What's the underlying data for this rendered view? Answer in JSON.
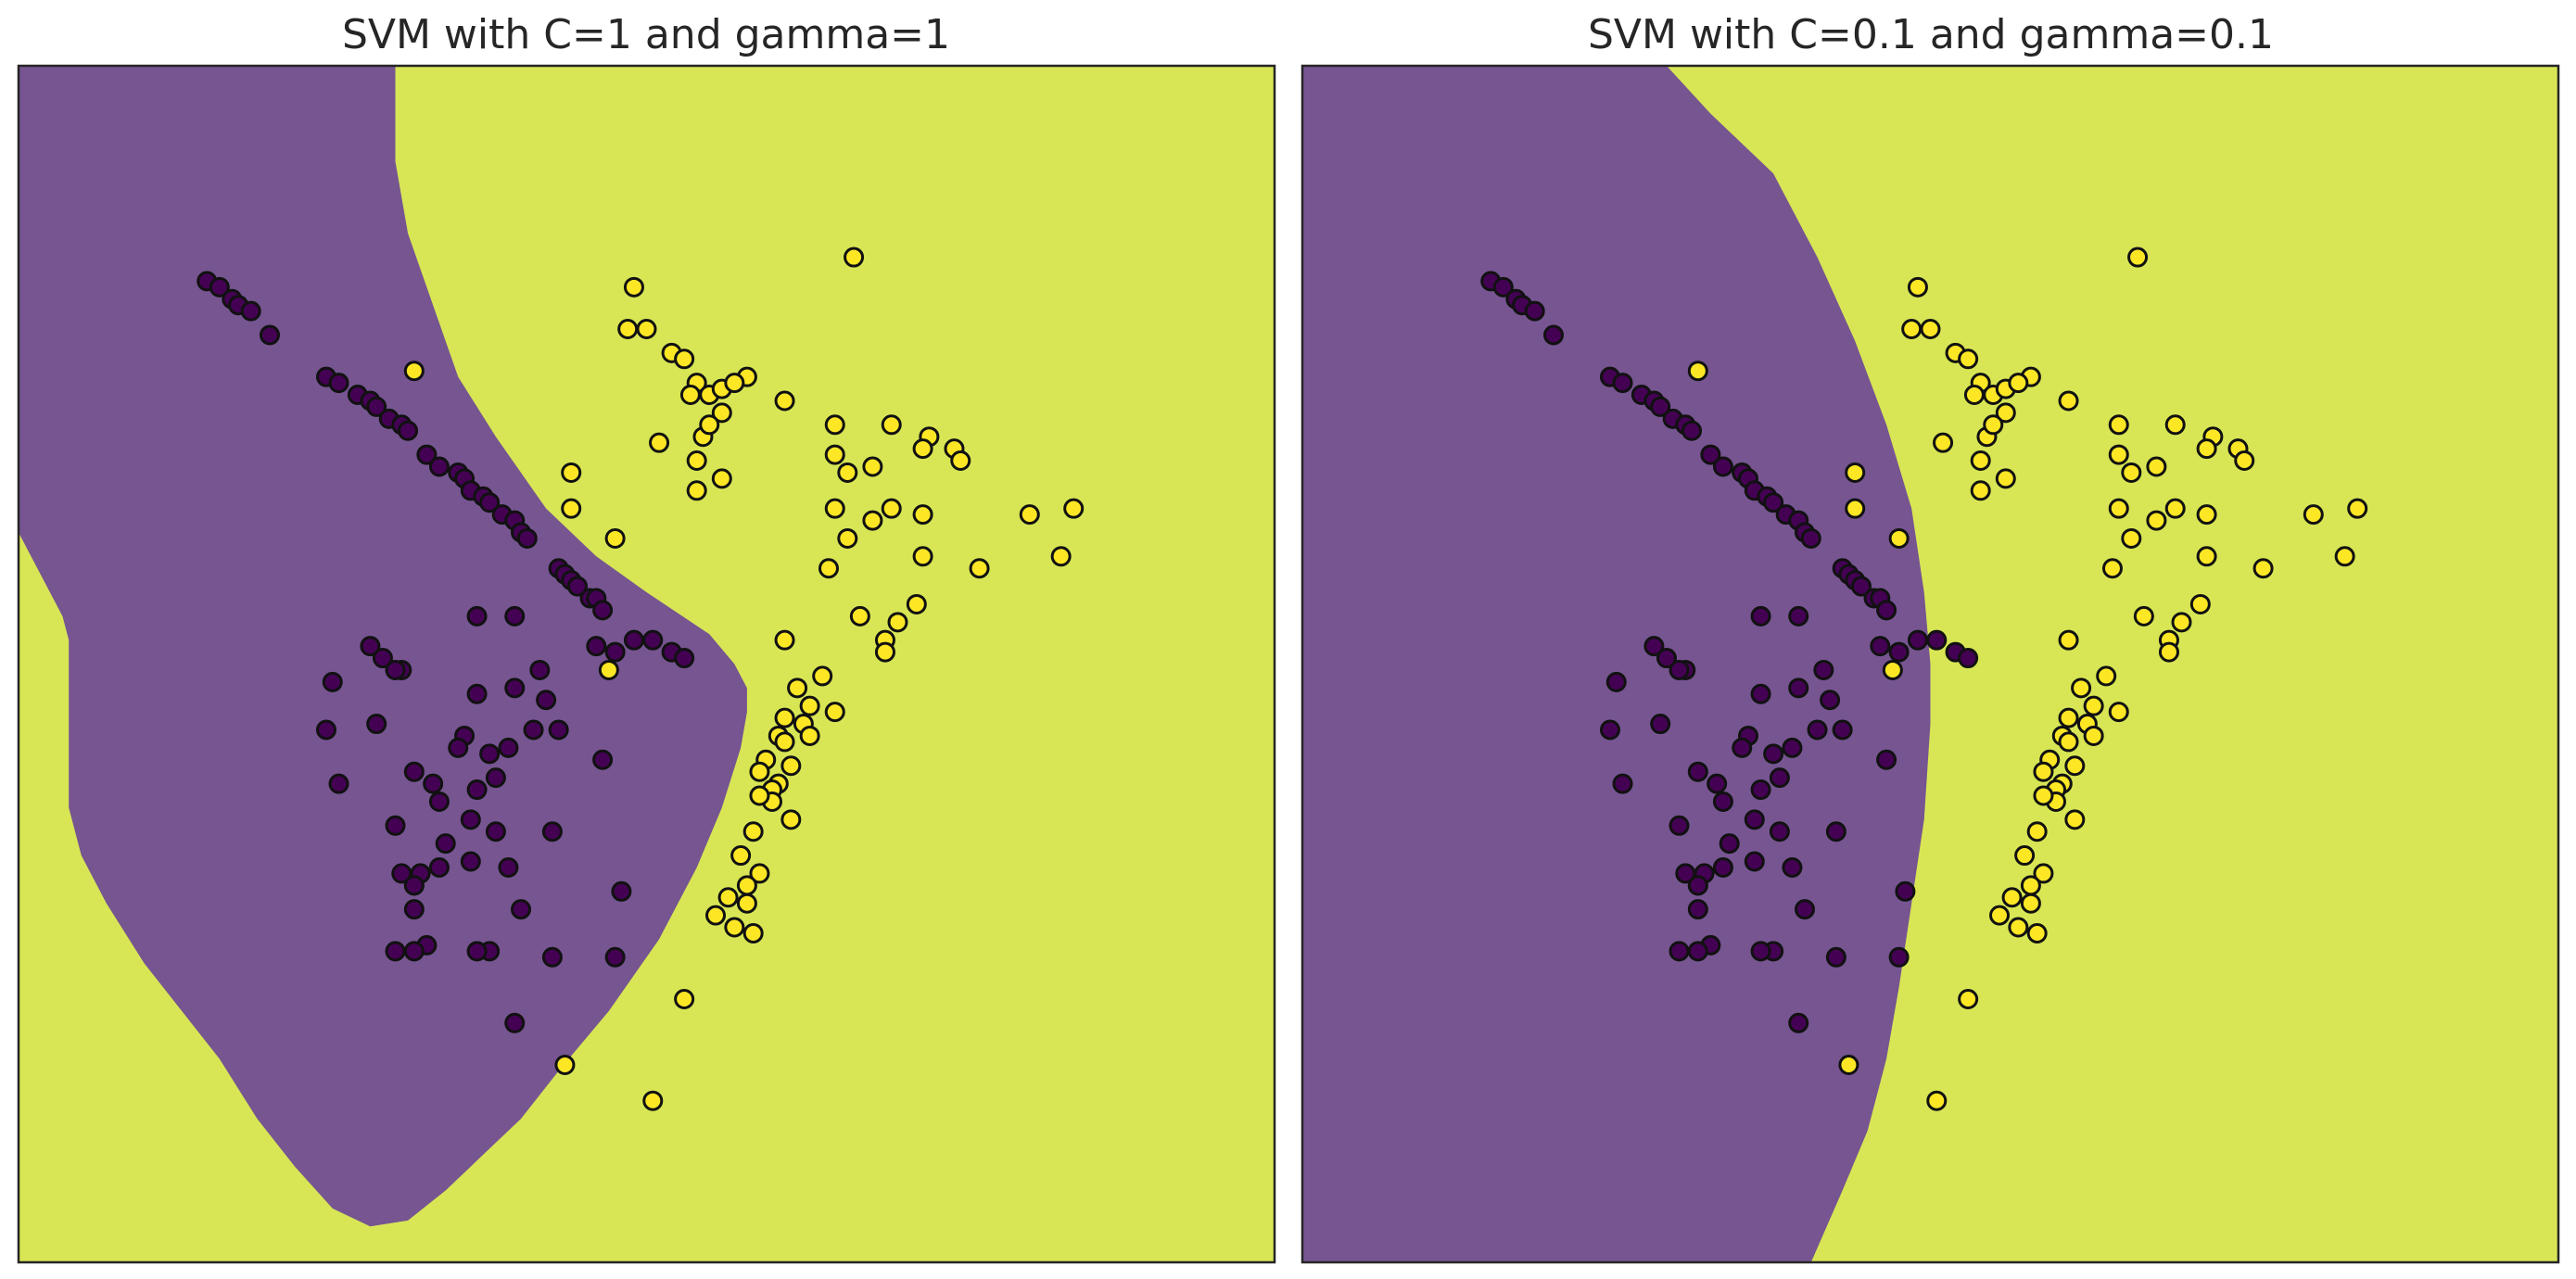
{
  "colors": {
    "class_0_region": "#765591",
    "class_1_region": "#d8e655",
    "class_0_point": "#440154",
    "class_1_point": "#fde725",
    "point_edge": "#111111"
  },
  "chart_data": [
    {
      "type": "scatter",
      "title": "SVM with C=1 and gamma=1",
      "xlabel": "",
      "ylabel": "",
      "xlim": [
        0,
        100
      ],
      "ylim": [
        0,
        100
      ],
      "grid": false,
      "ticks": false,
      "decision_region": {
        "class_0_boundary": [
          [
            0,
            61
          ],
          [
            1.5,
            58
          ],
          [
            3.5,
            54
          ],
          [
            4,
            52
          ],
          [
            4,
            38
          ],
          [
            5,
            34
          ],
          [
            7,
            30
          ],
          [
            10,
            25
          ],
          [
            13,
            21
          ],
          [
            16,
            17
          ],
          [
            19,
            12
          ],
          [
            22,
            8
          ],
          [
            25,
            4.5
          ],
          [
            28,
            3
          ],
          [
            31,
            3.5
          ],
          [
            34,
            6
          ],
          [
            37,
            9
          ],
          [
            40,
            12
          ],
          [
            43,
            16
          ],
          [
            47,
            21
          ],
          [
            51,
            27
          ],
          [
            54,
            33
          ],
          [
            56,
            38
          ],
          [
            57.5,
            43
          ],
          [
            58,
            46
          ],
          [
            58,
            48
          ],
          [
            57,
            50
          ],
          [
            55,
            52.5
          ],
          [
            50,
            56
          ],
          [
            46,
            59
          ],
          [
            42,
            63
          ],
          [
            38,
            69
          ],
          [
            35,
            74
          ],
          [
            33,
            80
          ],
          [
            31,
            86
          ],
          [
            30,
            92
          ],
          [
            30,
            100
          ],
          [
            0,
            100
          ]
        ]
      },
      "series": [
        {
          "class": 0,
          "x": [
            15,
            16,
            17,
            17.5,
            18.5,
            20,
            24.5,
            25.5,
            27,
            28,
            28.5,
            29.5,
            30.5,
            31,
            32.5,
            33.5,
            35,
            35.5,
            36,
            37,
            37.5,
            38.5,
            39.5,
            40,
            40.5,
            43,
            43.5,
            44,
            44.5,
            45.5,
            46,
            46.5,
            46,
            47.5,
            49,
            50.5,
            52,
            53,
            36.5,
            39.5,
            28,
            29,
            30.5,
            25,
            30,
            24.5,
            41.5,
            25.5,
            39.5,
            36.5,
            42,
            43,
            28.5,
            35.5,
            35,
            37.5,
            39,
            41,
            46.5,
            36.5,
            38,
            31.5,
            33.5,
            33,
            30,
            42.5,
            34,
            36,
            38,
            36,
            33.5,
            30.5,
            31.5,
            39,
            31.5,
            40,
            37.5,
            32.5,
            32,
            31.5,
            48,
            30,
            31.5,
            36.5,
            42.5,
            47.5,
            39.5
          ],
          "y": [
            82,
            81.5,
            80.5,
            80,
            79.5,
            77.5,
            74,
            73.5,
            72.5,
            72,
            71.5,
            70.5,
            70,
            69.5,
            67.5,
            66.5,
            66,
            65.5,
            64.5,
            64,
            63.5,
            62.5,
            62,
            61,
            60.5,
            58,
            57.5,
            57,
            56.5,
            55.5,
            55.5,
            54.5,
            51.5,
            51,
            52,
            52,
            51,
            50.5,
            54,
            54,
            51.5,
            50.5,
            49.5,
            48.5,
            49.5,
            44.5,
            49.5,
            40,
            48,
            47.5,
            47,
            44.5,
            45,
            44,
            43,
            42.5,
            43,
            44.5,
            42,
            39.5,
            40.5,
            41,
            38.5,
            40,
            36.5,
            36,
            35,
            37,
            36,
            33.5,
            33,
            32.5,
            31.5,
            33,
            29.5,
            29.5,
            26,
            26.5,
            32.5,
            31.5,
            31,
            26,
            26,
            26,
            25.5,
            25.5,
            20
          ]
        },
        {
          "class": 1,
          "x": [
            49,
            66.5,
            48.5,
            50,
            52,
            53,
            58,
            54,
            53.5,
            55,
            56,
            57,
            56,
            61,
            65,
            69.5,
            72.5,
            74.5,
            51,
            54.5,
            55,
            54,
            65,
            66,
            68,
            72,
            75,
            84,
            80.5,
            83,
            65,
            68,
            72,
            54,
            56,
            44,
            31.5,
            44,
            47.5,
            69.5,
            72,
            64.5,
            66,
            67,
            76.5,
            71.5,
            70,
            69,
            69,
            64,
            62,
            63,
            65,
            62.5,
            63,
            61,
            60.5,
            61,
            59.5,
            61.5,
            60.5,
            59,
            60,
            60,
            59,
            58.5,
            61.5,
            57.5,
            59,
            58,
            56.5,
            55.5,
            58,
            57,
            58.5,
            61,
            47,
            50.5,
            43.5,
            53
          ],
          "y": [
            81.5,
            84,
            78,
            78,
            76,
            75.5,
            74,
            73.5,
            72.5,
            72.5,
            73,
            73.5,
            71,
            72,
            70,
            70,
            69,
            68,
            68.5,
            69,
            70,
            67,
            67.5,
            66,
            66.5,
            68,
            67,
            63,
            62.5,
            59,
            63,
            62,
            62.5,
            64.5,
            65.5,
            66,
            74.5,
            63,
            60.5,
            63,
            59,
            58,
            60.5,
            54,
            58,
            55,
            53.5,
            52,
            51,
            49,
            48,
            46.5,
            46,
            45,
            44,
            45.5,
            44,
            43.5,
            42,
            41.5,
            40,
            41,
            39.5,
            38.5,
            39,
            36,
            37,
            34,
            32.5,
            31.5,
            30.5,
            29,
            30,
            28,
            27.5,
            52,
            49.5,
            13.5,
            16.5,
            22
          ]
        }
      ]
    },
    {
      "type": "scatter",
      "title": "SVM with C=0.1 and gamma=0.1",
      "xlabel": "",
      "ylabel": "",
      "xlim": [
        0,
        100
      ],
      "ylim": [
        0,
        100
      ],
      "grid": false,
      "ticks": false,
      "decision_region": {
        "class_0_boundary": [
          [
            0,
            0
          ],
          [
            40.5,
            0
          ],
          [
            43,
            6
          ],
          [
            45,
            11
          ],
          [
            46.5,
            17
          ],
          [
            47.5,
            23
          ],
          [
            48.5,
            30
          ],
          [
            49.5,
            37
          ],
          [
            50,
            45
          ],
          [
            50,
            50
          ],
          [
            49.5,
            56
          ],
          [
            48.5,
            63
          ],
          [
            46.5,
            70
          ],
          [
            44,
            77
          ],
          [
            41,
            84
          ],
          [
            37.5,
            91
          ],
          [
            32.5,
            96
          ],
          [
            29,
            100
          ],
          [
            0,
            100
          ]
        ]
      },
      "series": [
        {
          "class": 0,
          "x": [
            15,
            16,
            17,
            17.5,
            18.5,
            20,
            24.5,
            25.5,
            27,
            28,
            28.5,
            29.5,
            30.5,
            31,
            32.5,
            33.5,
            35,
            35.5,
            36,
            37,
            37.5,
            38.5,
            39.5,
            40,
            40.5,
            43,
            43.5,
            44,
            44.5,
            45.5,
            46,
            46.5,
            46,
            47.5,
            49,
            50.5,
            52,
            53,
            36.5,
            39.5,
            28,
            29,
            30.5,
            25,
            30,
            24.5,
            41.5,
            25.5,
            39.5,
            36.5,
            42,
            43,
            28.5,
            35.5,
            35,
            37.5,
            39,
            41,
            46.5,
            36.5,
            38,
            31.5,
            33.5,
            33,
            30,
            42.5,
            34,
            36,
            38,
            36,
            33.5,
            30.5,
            31.5,
            39,
            31.5,
            40,
            37.5,
            32.5,
            32,
            31.5,
            48,
            30,
            31.5,
            36.5,
            42.5,
            47.5,
            39.5
          ],
          "y": [
            82,
            81.5,
            80.5,
            80,
            79.5,
            77.5,
            74,
            73.5,
            72.5,
            72,
            71.5,
            70.5,
            70,
            69.5,
            67.5,
            66.5,
            66,
            65.5,
            64.5,
            64,
            63.5,
            62.5,
            62,
            61,
            60.5,
            58,
            57.5,
            57,
            56.5,
            55.5,
            55.5,
            54.5,
            51.5,
            51,
            52,
            52,
            51,
            50.5,
            54,
            54,
            51.5,
            50.5,
            49.5,
            48.5,
            49.5,
            44.5,
            49.5,
            40,
            48,
            47.5,
            47,
            44.5,
            45,
            44,
            43,
            42.5,
            43,
            44.5,
            42,
            39.5,
            40.5,
            41,
            38.5,
            40,
            36.5,
            36,
            35,
            37,
            36,
            33.5,
            33,
            32.5,
            31.5,
            33,
            29.5,
            29.5,
            26,
            26.5,
            32.5,
            31.5,
            31,
            26,
            26,
            26,
            25.5,
            25.5,
            20
          ]
        },
        {
          "class": 1,
          "x": [
            49,
            66.5,
            48.5,
            50,
            52,
            53,
            58,
            54,
            53.5,
            55,
            56,
            57,
            56,
            61,
            65,
            69.5,
            72.5,
            74.5,
            51,
            54.5,
            55,
            54,
            65,
            66,
            68,
            72,
            75,
            84,
            80.5,
            83,
            65,
            68,
            72,
            54,
            56,
            44,
            31.5,
            44,
            47.5,
            69.5,
            72,
            64.5,
            66,
            67,
            76.5,
            71.5,
            70,
            69,
            69,
            64,
            62,
            63,
            65,
            62.5,
            63,
            61,
            60.5,
            61,
            59.5,
            61.5,
            60.5,
            59,
            60,
            60,
            59,
            58.5,
            61.5,
            57.5,
            59,
            58,
            56.5,
            55.5,
            58,
            57,
            58.5,
            61,
            47,
            50.5,
            43.5,
            53
          ],
          "y": [
            81.5,
            84,
            78,
            78,
            76,
            75.5,
            74,
            73.5,
            72.5,
            72.5,
            73,
            73.5,
            71,
            72,
            70,
            70,
            69,
            68,
            68.5,
            69,
            70,
            67,
            67.5,
            66,
            66.5,
            68,
            67,
            63,
            62.5,
            59,
            63,
            62,
            62.5,
            64.5,
            65.5,
            66,
            74.5,
            63,
            60.5,
            63,
            59,
            58,
            60.5,
            54,
            58,
            55,
            53.5,
            52,
            51,
            49,
            48,
            46.5,
            46,
            45,
            44,
            45.5,
            44,
            43.5,
            42,
            41.5,
            40,
            41,
            39.5,
            38.5,
            39,
            36,
            37,
            34,
            32.5,
            31.5,
            30.5,
            29,
            30,
            28,
            27.5,
            52,
            49.5,
            13.5,
            16.5,
            22
          ]
        }
      ]
    }
  ]
}
